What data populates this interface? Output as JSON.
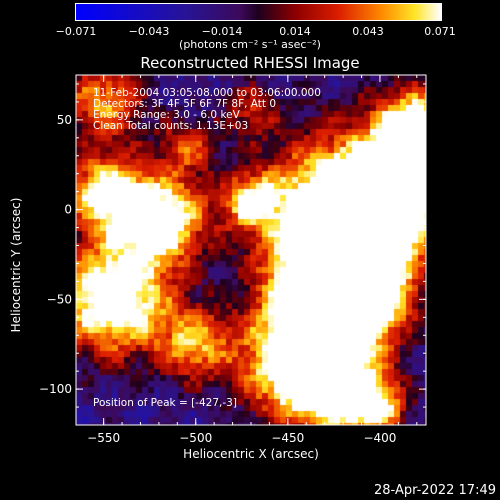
{
  "chart_data": {
    "type": "heatmap",
    "title": "Reconstructed RHESSI Image",
    "xlabel": "Heliocentric X (arcsec)",
    "ylabel": "Heliocentric Y (arcsec)",
    "xlim": [
      -565,
      -375
    ],
    "ylim": [
      -120,
      75
    ],
    "xticks": [
      -550,
      -500,
      -450,
      -400
    ],
    "xtick_labels": [
      "−550",
      "−500",
      "−450",
      "−400"
    ],
    "yticks": [
      -100,
      -50,
      0,
      50
    ],
    "ytick_labels": [
      "−100",
      "−50",
      "0",
      "50"
    ],
    "colorbar": {
      "min": -0.071,
      "max": 0.071,
      "ticks": [
        -0.071,
        -0.043,
        -0.014,
        0.014,
        0.043,
        0.071
      ],
      "tick_labels": [
        "−0.071",
        "−0.043",
        "−0.014",
        "0.014",
        "0.043",
        "0.071"
      ],
      "units": "(photons cm⁻² s⁻¹ asec⁻²)"
    },
    "annotations": {
      "time": "11-Feb-2004 03:05:08.000 to 03:06:00.000",
      "detectors": "Detectors: 3F 4F 5F 6F 7F 8F, Att 0",
      "energy": "Energy Range: 3.0 - 6.0 keV",
      "clean": "Clean    Total counts: 1.13E+03",
      "peak": "Position of Peak = [-427,-3]"
    },
    "peak": [
      -427,
      -3
    ]
  },
  "footer": {
    "timestamp": "28-Apr-2022 17:49"
  },
  "colors": {
    "background": "#000000",
    "foreground": "#ffffff"
  }
}
